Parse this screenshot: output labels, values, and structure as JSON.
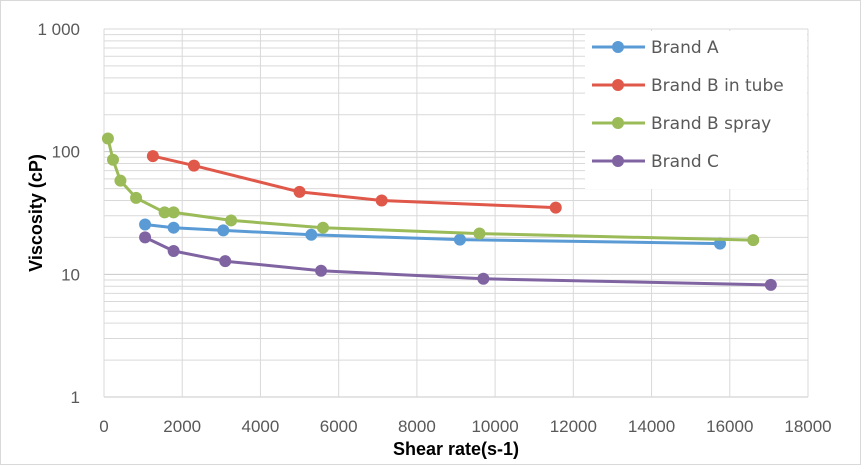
{
  "chart_data": {
    "type": "line",
    "title": "",
    "xlabel": "Shear rate(s-1)",
    "ylabel": "Viscosity (cP)",
    "xlim": [
      0,
      18000
    ],
    "ylim": [
      1,
      1000
    ],
    "yscale": "log",
    "x_ticks": [
      "0",
      "2000",
      "4000",
      "6000",
      "8000",
      "10000",
      "12000",
      "14000",
      "16000",
      "18000"
    ],
    "y_ticks": [
      {
        "value": 1,
        "label": "1"
      },
      {
        "value": 10,
        "label": "10"
      },
      {
        "value": 100,
        "label": "100"
      },
      {
        "value": 1000,
        "label": "1 000"
      }
    ],
    "grid": true,
    "legend_position": "top-right",
    "series": [
      {
        "name": "Brand A",
        "color": "#5b9bd5",
        "points": [
          [
            1050,
            25.5
          ],
          [
            1780,
            24
          ],
          [
            3050,
            22.8
          ],
          [
            5300,
            21
          ],
          [
            9100,
            19.2
          ],
          [
            15750,
            17.8
          ]
        ]
      },
      {
        "name": "Brand B in tube",
        "color": "#e0584a",
        "points": [
          [
            1250,
            92
          ],
          [
            2300,
            77
          ],
          [
            5000,
            47
          ],
          [
            7100,
            40
          ],
          [
            11550,
            35
          ]
        ]
      },
      {
        "name": "Brand B spray",
        "color": "#9bbb59",
        "points": [
          [
            100,
            128
          ],
          [
            230,
            86
          ],
          [
            420,
            58
          ],
          [
            820,
            42
          ],
          [
            1550,
            32
          ],
          [
            1780,
            32
          ],
          [
            3250,
            27.5
          ],
          [
            5600,
            24
          ],
          [
            9600,
            21.5
          ],
          [
            16600,
            19
          ]
        ]
      },
      {
        "name": "Brand C",
        "color": "#8064a2",
        "points": [
          [
            1050,
            20
          ],
          [
            1780,
            15.5
          ],
          [
            3100,
            12.8
          ],
          [
            5550,
            10.7
          ],
          [
            9700,
            9.2
          ],
          [
            17050,
            8.2
          ]
        ]
      }
    ]
  }
}
